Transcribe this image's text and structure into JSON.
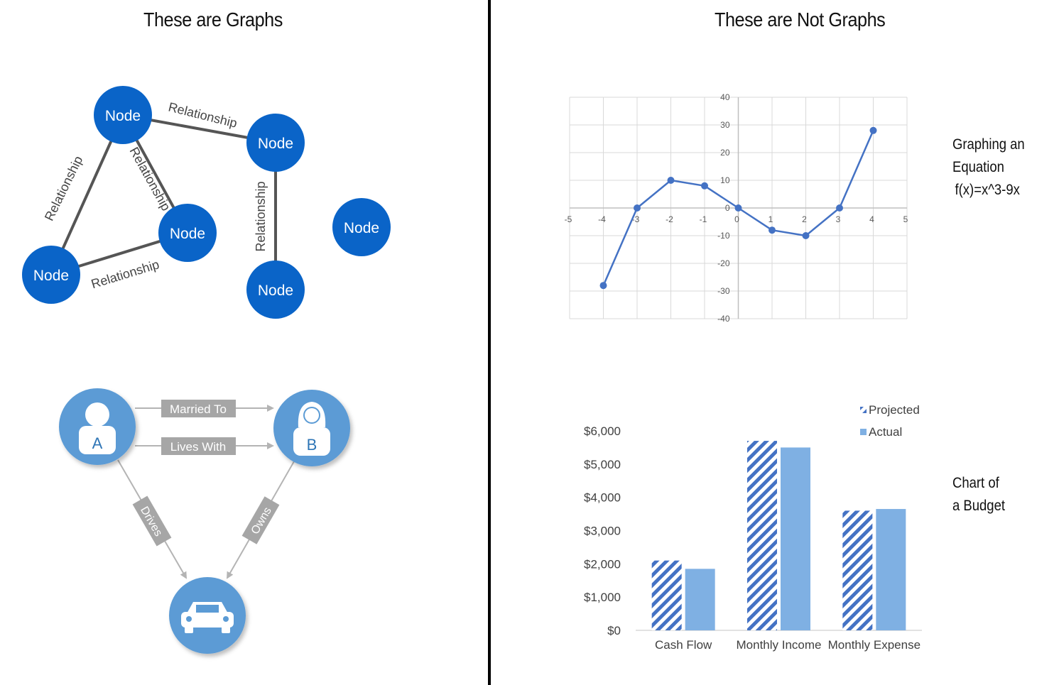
{
  "headings": {
    "left": "These are Graphs",
    "right": "These are Not Graphs"
  },
  "graph_diagram": {
    "node_label": "Node",
    "edge_label": "Relationship",
    "node_color": "#0a64c8",
    "edge_color": "#555555"
  },
  "example_graph": {
    "person_a": "A",
    "person_b": "B",
    "edges": {
      "married_to": "Married To",
      "lives_with": "Lives With",
      "drives": "Drives",
      "owns": "Owns"
    },
    "icons": {
      "person_a": "person-icon",
      "person_b": "person-female-icon",
      "car": "car-icon"
    },
    "circle_color": "#5b9bd5",
    "label_color": "#a6a6a6"
  },
  "equation_label": {
    "line1": "Graphing an",
    "line2": "Equation",
    "line3": "f(x)=x^3-9x"
  },
  "budget_label": {
    "line1": "Chart of",
    "line2": "a Budget"
  },
  "chart_data": [
    {
      "type": "line",
      "title": "",
      "x": [
        -4,
        -3,
        -2,
        -1,
        0,
        1,
        2,
        3,
        4
      ],
      "series": [
        {
          "values": [
            -28,
            0,
            10,
            8,
            0,
            -8,
            -10,
            0,
            28
          ]
        }
      ],
      "xlim": [
        -5,
        5
      ],
      "ylim": [
        -40,
        40
      ],
      "x_ticks": [
        "-5",
        "-4",
        "-3",
        "-2",
        "-1",
        "0",
        "1",
        "2",
        "3",
        "4",
        "5"
      ],
      "y_ticks": [
        "40",
        "30",
        "20",
        "10",
        "0",
        "-10",
        "-20",
        "-30",
        "-40"
      ],
      "grid": true,
      "color": "#4472c4"
    },
    {
      "type": "bar",
      "title": "",
      "categories": [
        "Cash Flow",
        "Monthly Income",
        "Monthly Expense"
      ],
      "series": [
        {
          "name": "Projected",
          "values": [
            2100,
            5700,
            3600
          ],
          "pattern": "striped",
          "color": "#4472c4"
        },
        {
          "name": "Actual",
          "values": [
            1850,
            5500,
            3650
          ],
          "color": "#7fb0e3"
        }
      ],
      "y_ticks": [
        "$6,000",
        "$5,000",
        "$4,000",
        "$3,000",
        "$2,000",
        "$1,000",
        "$0"
      ],
      "ylim": [
        0,
        6000
      ],
      "legend": "top-right"
    }
  ]
}
